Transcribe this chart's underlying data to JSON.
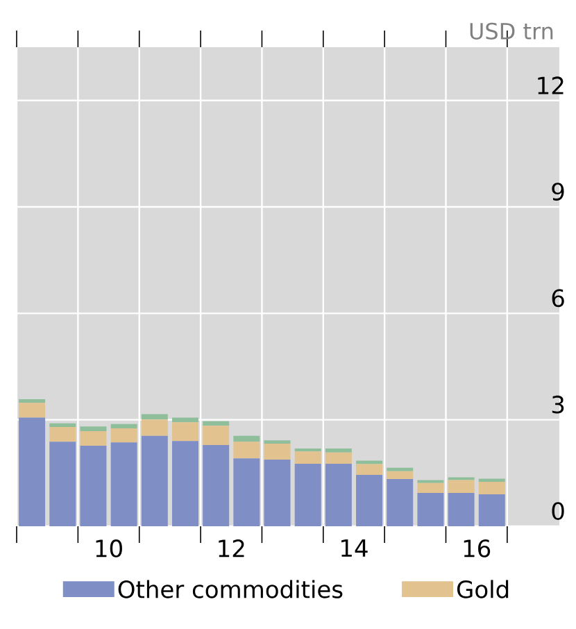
{
  "chart_data": {
    "type": "bar",
    "stacked": true,
    "ylabel": "USD trn",
    "x": [
      8.75,
      9.25,
      9.75,
      10.25,
      10.75,
      11.25,
      11.75,
      12.25,
      12.75,
      13.25,
      13.75,
      14.25,
      14.75,
      15.25,
      15.75,
      16.25
    ],
    "series": [
      {
        "name": "Other commodities",
        "color": "#7f8fc6",
        "values": [
          3.06,
          2.38,
          2.27,
          2.36,
          2.55,
          2.4,
          2.29,
          1.91,
          1.88,
          1.76,
          1.76,
          1.45,
          1.33,
          0.94,
          0.94,
          0.9
        ]
      },
      {
        "name": "Gold",
        "color": "#e2c28e",
        "values": [
          0.42,
          0.42,
          0.41,
          0.4,
          0.46,
          0.53,
          0.54,
          0.47,
          0.45,
          0.35,
          0.32,
          0.3,
          0.22,
          0.28,
          0.36,
          0.35
        ]
      },
      {
        "color": "#8fbf9a",
        "values": [
          0.1,
          0.1,
          0.13,
          0.12,
          0.15,
          0.13,
          0.13,
          0.17,
          0.09,
          0.08,
          0.11,
          0.1,
          0.1,
          0.08,
          0.08,
          0.09
        ]
      }
    ],
    "xlim": [
      8.5,
      17.35
    ],
    "xticks": [
      {
        "value": 8.5,
        "label": null
      },
      {
        "value": 9.5,
        "label": null
      },
      10,
      {
        "value": 10.5,
        "label": null
      },
      {
        "value": 11.5,
        "label": null
      },
      12,
      {
        "value": 12.5,
        "label": null
      },
      {
        "value": 13.5,
        "label": null
      },
      14,
      {
        "value": 14.5,
        "label": null
      },
      {
        "value": 15.5,
        "label": null
      },
      16,
      {
        "value": 16.5,
        "label": null
      }
    ],
    "ylim": [
      0,
      13.5
    ],
    "yticks": [
      0,
      3,
      6,
      9,
      12
    ],
    "grid": true,
    "legend": "bottom"
  }
}
